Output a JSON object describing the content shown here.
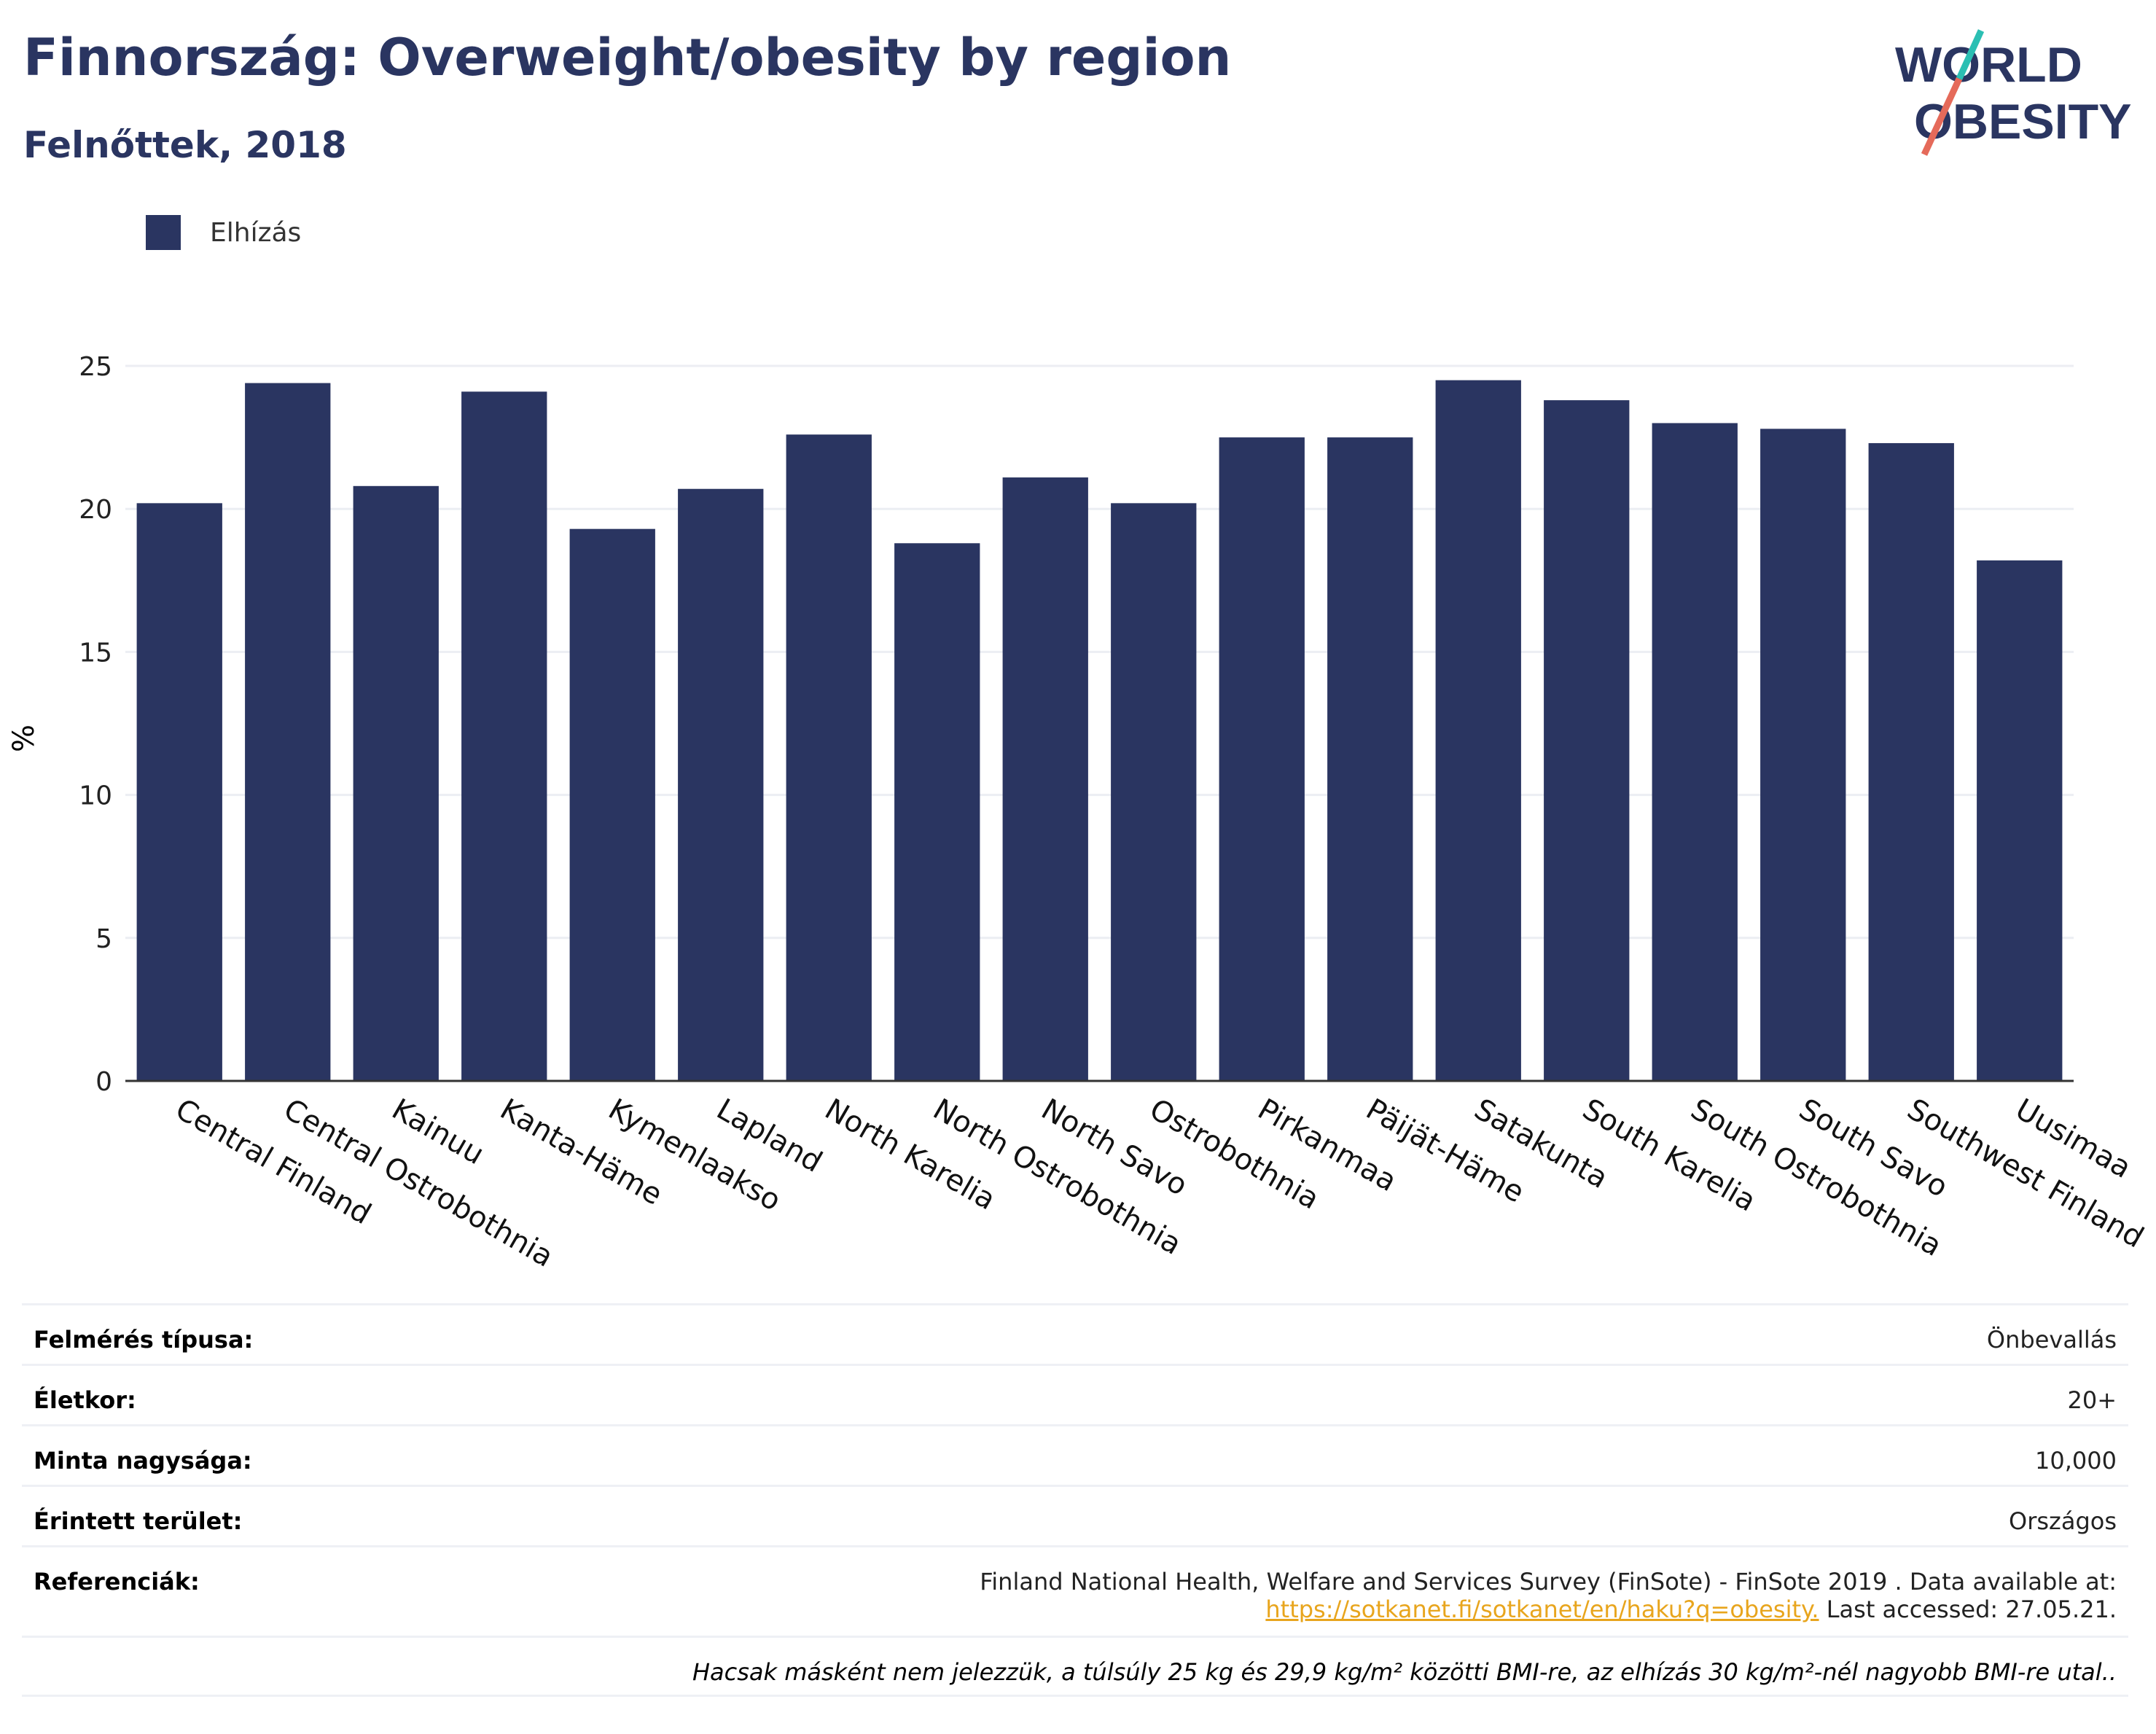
{
  "header": {
    "title": "Finnország: Overweight/obesity by region",
    "subtitle": "Felnőttek, 2018"
  },
  "logo": {
    "line1": "WORLD",
    "line2": "OBESITY"
  },
  "colors": {
    "bar": "#2a3561",
    "title": "#2a3561",
    "link": "#e8a51d",
    "logo_slash_top": "#2bbfb3",
    "logo_slash_bottom": "#e56a5a"
  },
  "chart_data": {
    "type": "bar",
    "ylabel": "%",
    "ylim": [
      0,
      25
    ],
    "yticks": [
      0,
      5,
      10,
      15,
      20,
      25
    ],
    "grid": true,
    "legend_position": "top-left",
    "categories": [
      "Central Finland",
      "Central Ostrobothnia",
      "Kainuu",
      "Kanta-Häme",
      "Kymenlaakso",
      "Lapland",
      "North Karelia",
      "North Ostrobothnia",
      "North Savo",
      "Ostrobothnia",
      "Pirkanmaa",
      "Päijät-Häme",
      "Satakunta",
      "South Karelia",
      "South Ostrobothnia",
      "South Savo",
      "Southwest Finland",
      "Uusimaa"
    ],
    "series": [
      {
        "name": "Elhízás",
        "values": [
          20.2,
          24.4,
          20.8,
          24.1,
          19.3,
          20.7,
          22.6,
          18.8,
          21.1,
          20.2,
          22.5,
          22.5,
          24.5,
          23.8,
          23.0,
          22.8,
          22.3,
          18.2
        ]
      }
    ]
  },
  "info": {
    "survey_type": {
      "label": "Felmérés típusa:",
      "value": "Önbevallás"
    },
    "age": {
      "label": "Életkor:",
      "value": "20+"
    },
    "sample_size": {
      "label": "Minta nagysága:",
      "value": "10,000"
    },
    "area": {
      "label": "Érintett terület:",
      "value": "Országos"
    },
    "references": {
      "label": "Referenciák:",
      "text1": "Finland National Health, Welfare and Services Survey (FinSote) - FinSote 2019 . Data available at:",
      "link": "https://sotkanet.fi/sotkanet/en/haku?q=obesity.",
      "text2": " Last accessed: 27.05.21."
    },
    "note": "Hacsak másként nem jelezzük, a túlsúly 25 kg és 29,9 kg/m² közötti BMI-re, az elhízás 30 kg/m²-nél nagyobb BMI-re utal.."
  }
}
